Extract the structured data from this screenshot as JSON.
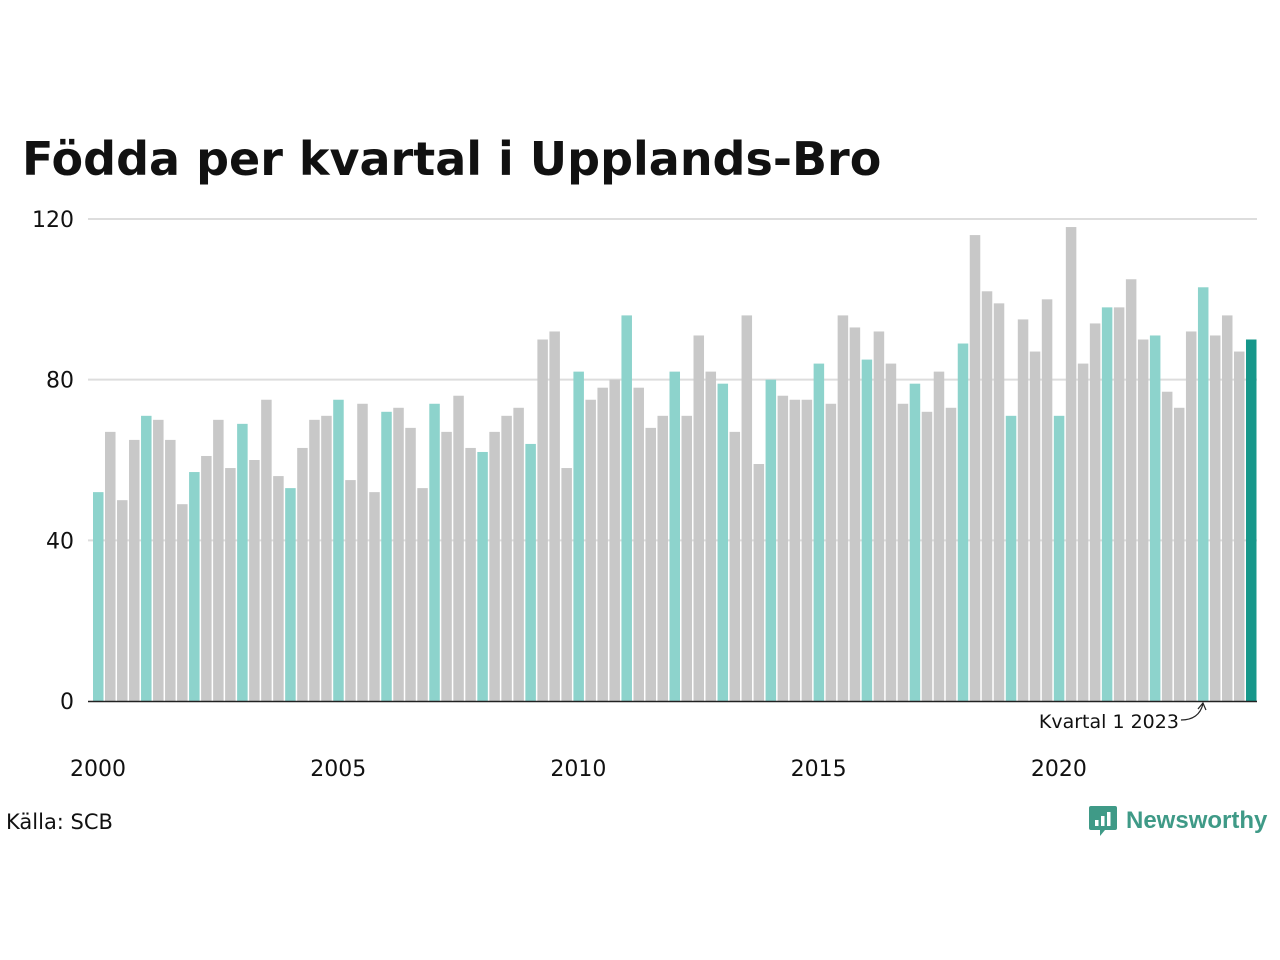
{
  "chart_data": {
    "type": "bar",
    "title": "Födda per kvartal i Upplands-Bro",
    "xlabel": "",
    "ylabel": "",
    "ylim": [
      0,
      120
    ],
    "yticks": [
      0,
      40,
      80,
      120
    ],
    "xticks": [
      "2000",
      "2005",
      "2010",
      "2015",
      "2020"
    ],
    "start_year": 2000,
    "grid": true,
    "colors": {
      "q1": "#8dd3cc",
      "other": "#c8c8c8",
      "latest": "#16978a",
      "grid": "#dddddd",
      "axis": "#222222"
    },
    "annotation": "Kvartal 1 2023",
    "values": [
      52,
      67,
      50,
      65,
      71,
      70,
      65,
      49,
      57,
      61,
      70,
      58,
      69,
      60,
      75,
      56,
      53,
      63,
      70,
      71,
      75,
      55,
      74,
      52,
      72,
      73,
      68,
      53,
      74,
      67,
      76,
      63,
      62,
      67,
      71,
      73,
      64,
      90,
      92,
      58,
      82,
      75,
      78,
      80,
      96,
      78,
      68,
      71,
      82,
      71,
      91,
      82,
      79,
      67,
      96,
      59,
      80,
      76,
      75,
      75,
      84,
      74,
      96,
      93,
      85,
      92,
      84,
      74,
      79,
      72,
      82,
      73,
      89,
      116,
      102,
      99,
      71,
      95,
      87,
      100,
      71,
      118,
      84,
      94,
      98,
      98,
      105,
      90,
      91,
      77,
      73,
      92,
      103,
      91,
      96,
      87,
      90
    ]
  },
  "source": "Källa: SCB",
  "logo": {
    "text": "Newsworthy",
    "icon": "newsworthy-chat-chart-icon",
    "color": "#3f9a87"
  }
}
